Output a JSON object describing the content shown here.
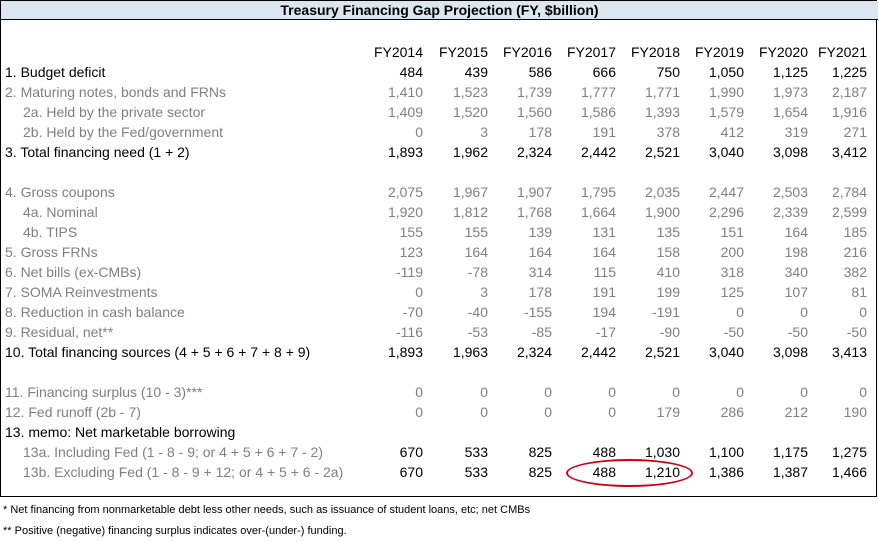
{
  "title": "Treasury Financing Gap Projection (FY, $billion)",
  "years": [
    "FY2014",
    "FY2015",
    "FY2016",
    "FY2017",
    "FY2018",
    "FY2019",
    "FY2020",
    "FY2021"
  ],
  "rows": [
    {
      "label": "1. Budget deficit",
      "indent": 0,
      "style": "dark",
      "values": [
        "484",
        "439",
        "586",
        "666",
        "750",
        "1,050",
        "1,125",
        "1,225"
      ]
    },
    {
      "label": "2. Maturing notes, bonds and FRNs",
      "indent": 0,
      "style": "gray",
      "values": [
        "1,410",
        "1,523",
        "1,739",
        "1,777",
        "1,771",
        "1,990",
        "1,973",
        "2,187"
      ]
    },
    {
      "label": "2a. Held by the private sector",
      "indent": 1,
      "style": "gray",
      "values": [
        "1,409",
        "1,520",
        "1,560",
        "1,586",
        "1,393",
        "1,579",
        "1,654",
        "1,916"
      ]
    },
    {
      "label": "2b. Held by the Fed/government",
      "indent": 1,
      "style": "gray",
      "values": [
        "0",
        "3",
        "178",
        "191",
        "378",
        "412",
        "319",
        "271"
      ]
    },
    {
      "label": "3. Total financing need (1 + 2)",
      "indent": 0,
      "style": "dark",
      "values": [
        "1,893",
        "1,962",
        "2,324",
        "2,442",
        "2,521",
        "3,040",
        "3,098",
        "3,412"
      ]
    },
    {
      "label": "",
      "indent": 0,
      "style": "gray",
      "values": [
        "",
        "",
        "",
        "",
        "",
        "",
        "",
        ""
      ]
    },
    {
      "label": "4. Gross coupons",
      "indent": 0,
      "style": "gray",
      "values": [
        "2,075",
        "1,967",
        "1,907",
        "1,795",
        "2,035",
        "2,447",
        "2,503",
        "2,784"
      ]
    },
    {
      "label": "4a. Nominal",
      "indent": 1,
      "style": "gray",
      "values": [
        "1,920",
        "1,812",
        "1,768",
        "1,664",
        "1,900",
        "2,296",
        "2,339",
        "2,599"
      ]
    },
    {
      "label": "4b. TIPS",
      "indent": 1,
      "style": "gray",
      "values": [
        "155",
        "155",
        "139",
        "131",
        "135",
        "151",
        "164",
        "185"
      ]
    },
    {
      "label": "5. Gross FRNs",
      "indent": 0,
      "style": "gray",
      "values": [
        "123",
        "164",
        "164",
        "164",
        "158",
        "200",
        "198",
        "216"
      ]
    },
    {
      "label": "6. Net bills (ex-CMBs)",
      "indent": 0,
      "style": "gray",
      "values": [
        "-119",
        "-78",
        "314",
        "115",
        "410",
        "318",
        "340",
        "382"
      ]
    },
    {
      "label": "7. SOMA Reinvestments",
      "indent": 0,
      "style": "gray",
      "values": [
        "0",
        "3",
        "178",
        "191",
        "199",
        "125",
        "107",
        "81"
      ]
    },
    {
      "label": "8. Reduction in cash balance",
      "indent": 0,
      "style": "gray",
      "values": [
        "-70",
        "-40",
        "-155",
        "194",
        "-191",
        "0",
        "0",
        "0"
      ]
    },
    {
      "label": "9. Residual, net**",
      "indent": 0,
      "style": "gray",
      "values": [
        "-116",
        "-53",
        "-85",
        "-17",
        "-90",
        "-50",
        "-50",
        "-50"
      ]
    },
    {
      "label": "10. Total financing sources (4 + 5 + 6 + 7 + 8 + 9)",
      "indent": 0,
      "style": "dark",
      "values": [
        "1,893",
        "1,963",
        "2,324",
        "2,442",
        "2,521",
        "3,040",
        "3,098",
        "3,413"
      ]
    },
    {
      "label": "",
      "indent": 0,
      "style": "gray",
      "values": [
        "",
        "",
        "",
        "",
        "",
        "",
        "",
        ""
      ]
    },
    {
      "label": "11. Financing surplus (10 - 3)***",
      "indent": 0,
      "style": "gray",
      "values": [
        "0",
        "0",
        "0",
        "0",
        "0",
        "0",
        "0",
        "0"
      ]
    },
    {
      "label": "12. Fed runoff (2b - 7)",
      "indent": 0,
      "style": "gray",
      "values": [
        "0",
        "0",
        "0",
        "0",
        "179",
        "286",
        "212",
        "190"
      ]
    },
    {
      "label": "13.  memo: Net marketable borrowing",
      "indent": 0,
      "style": "dark",
      "values": [
        "",
        "",
        "",
        "",
        "",
        "",
        "",
        ""
      ]
    },
    {
      "label": "13a. Including Fed (1 - 8 - 9; or 4 + 5 + 6 + 7 - 2)",
      "indent": 1,
      "style": "gray-label",
      "values": [
        "670",
        "533",
        "825",
        "488",
        "1,030",
        "1,100",
        "1,175",
        "1,275"
      ]
    },
    {
      "label": "13b. Excluding Fed (1 - 8 - 9 + 12; or 4 + 5 + 6 - 2a)",
      "indent": 1,
      "style": "gray-label",
      "values": [
        "670",
        "533",
        "825",
        "488",
        "1,210",
        "1,386",
        "1,387",
        "1,466"
      ]
    }
  ],
  "footnotes": [
    "* Net financing from nonmarketable debt less other needs, such as issuance of student loans, etc; net CMBs",
    "** Positive (negative) financing surplus indicates over-(under-) funding."
  ],
  "annotation": {
    "color": "#d0021b",
    "shape": "ellipse",
    "highlights": "13b FY2017–FY2018"
  }
}
